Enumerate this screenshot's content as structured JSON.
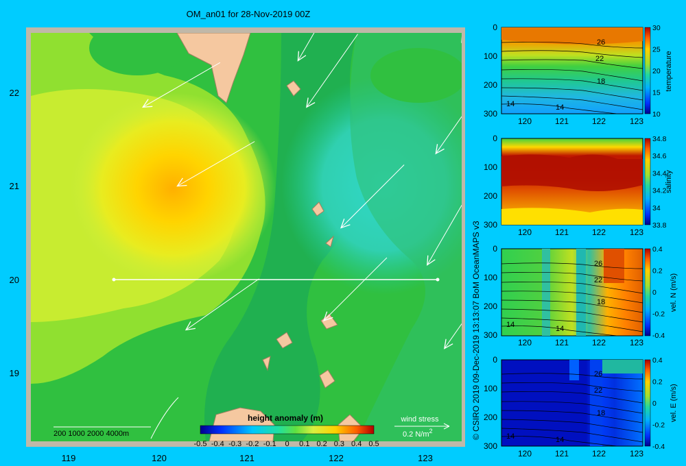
{
  "colors": {
    "background": "#00ccff",
    "map_frame": "#c0b8a8",
    "land": "#f5c8a0",
    "land_edge": "#c8a080"
  },
  "map": {
    "title": "OM_an01 for 28-Nov-2019 00Z",
    "x_ticks": [
      "119",
      "120",
      "121",
      "122",
      "123"
    ],
    "y_ticks": [
      "22",
      "21",
      "20",
      "19"
    ],
    "bathy_label": "200  1000  2000  4000m",
    "colorbar_title": "height anomaly  (m)",
    "colorbar_ticks": [
      "-0.5",
      "-0.4",
      "-0.3",
      "-0.2",
      "-0.1",
      "0",
      "0.1",
      "0.2",
      "0.3",
      "0.4",
      "0.5"
    ],
    "wind_label": "wind stress",
    "wind_scale": "0.2 N/m",
    "wind_scale_exp": "2"
  },
  "side_text": "© CSIRO 2019   09-Dec-2019 13:13:07  BoM OceanMAPS v3",
  "panels": [
    {
      "label": "temperature",
      "x_ticks": [
        "120",
        "121",
        "122",
        "123"
      ],
      "y_ticks": [
        "0",
        "100",
        "200",
        "300"
      ],
      "cbar_ticks": [
        "30",
        "25",
        "20",
        "15",
        "10"
      ],
      "contour_labels": [
        "26",
        "22",
        "18",
        "14",
        "14"
      ]
    },
    {
      "label": "salinity",
      "x_ticks": [
        "120",
        "121",
        "122",
        "123"
      ],
      "y_ticks": [
        "0",
        "100",
        "200",
        "300"
      ],
      "cbar_ticks": [
        "34.8",
        "34.6",
        "34.4",
        "34.2",
        "34",
        "33.8"
      ],
      "contour_labels": []
    },
    {
      "label": "vel. N  (m/s)",
      "x_ticks": [
        "120",
        "121",
        "122",
        "123"
      ],
      "y_ticks": [
        "0",
        "100",
        "200",
        "300"
      ],
      "cbar_ticks": [
        "0.4",
        "0.2",
        "0",
        "-0.2",
        "-0.4"
      ],
      "contour_labels": [
        "26",
        "22",
        "18",
        "14",
        "14"
      ]
    },
    {
      "label": "vel. E  (m/s)",
      "x_ticks": [
        "120",
        "121",
        "122",
        "123"
      ],
      "y_ticks": [
        "0",
        "100",
        "200",
        "300"
      ],
      "cbar_ticks": [
        "0.4",
        "0.2",
        "0",
        "-0.2",
        "-0.4"
      ],
      "contour_labels": [
        "26",
        "22",
        "18",
        "14",
        "14"
      ]
    }
  ],
  "chart_data": [
    {
      "type": "heatmap",
      "title": "OM_an01 for 28-Nov-2019 00Z",
      "variable": "height anomaly (m)",
      "xlim": [
        118.5,
        123.5
      ],
      "ylim": [
        18.3,
        22.7
      ],
      "colorbar_range": [
        -0.5,
        0.5
      ],
      "anomaly_max": {
        "lon": 120.1,
        "lat": 20.95,
        "value": 0.32
      },
      "anomaly_min": {
        "lon": 122.8,
        "lat": 20.9,
        "value": 0.0
      },
      "section_line": {
        "lon": [
          119.5,
          123.2
        ],
        "lat": [
          20.0,
          20.0
        ]
      },
      "wind_stress_arrows": [
        {
          "lon": 120.2,
          "lat": 21.05,
          "angle": 210
        },
        {
          "lon": 119.8,
          "lat": 21.9,
          "angle": 210
        },
        {
          "lon": 121.6,
          "lat": 22.4,
          "angle": 240
        },
        {
          "lon": 121.7,
          "lat": 21.9,
          "angle": 235
        },
        {
          "lon": 122.1,
          "lat": 20.6,
          "angle": 225
        },
        {
          "lon": 123.2,
          "lat": 21.4,
          "angle": 235
        },
        {
          "lon": 123.5,
          "lat": 22.6,
          "angle": 240
        },
        {
          "lon": 123.1,
          "lat": 20.2,
          "angle": 240
        },
        {
          "lon": 120.3,
          "lat": 19.5,
          "angle": 215
        },
        {
          "lon": 121.9,
          "lat": 19.6,
          "angle": 225
        },
        {
          "lon": 123.3,
          "lat": 19.3,
          "angle": 235
        }
      ]
    },
    {
      "type": "heatmap",
      "variable": "temperature",
      "xlim": [
        119.5,
        123.2
      ],
      "ylim": [
        300,
        0
      ],
      "colorbar_range": [
        10,
        30
      ],
      "contour_levels": [
        26,
        22,
        18,
        14
      ]
    },
    {
      "type": "heatmap",
      "variable": "salinity",
      "xlim": [
        119.5,
        123.2
      ],
      "ylim": [
        300,
        0
      ],
      "colorbar_range": [
        33.8,
        34.8
      ]
    },
    {
      "type": "heatmap",
      "variable": "vel. N (m/s)",
      "xlim": [
        119.5,
        123.2
      ],
      "ylim": [
        300,
        0
      ],
      "colorbar_range": [
        -0.4,
        0.4
      ]
    },
    {
      "type": "heatmap",
      "variable": "vel. E (m/s)",
      "xlim": [
        119.5,
        123.2
      ],
      "ylim": [
        300,
        0
      ],
      "colorbar_range": [
        -0.4,
        0.4
      ]
    }
  ]
}
